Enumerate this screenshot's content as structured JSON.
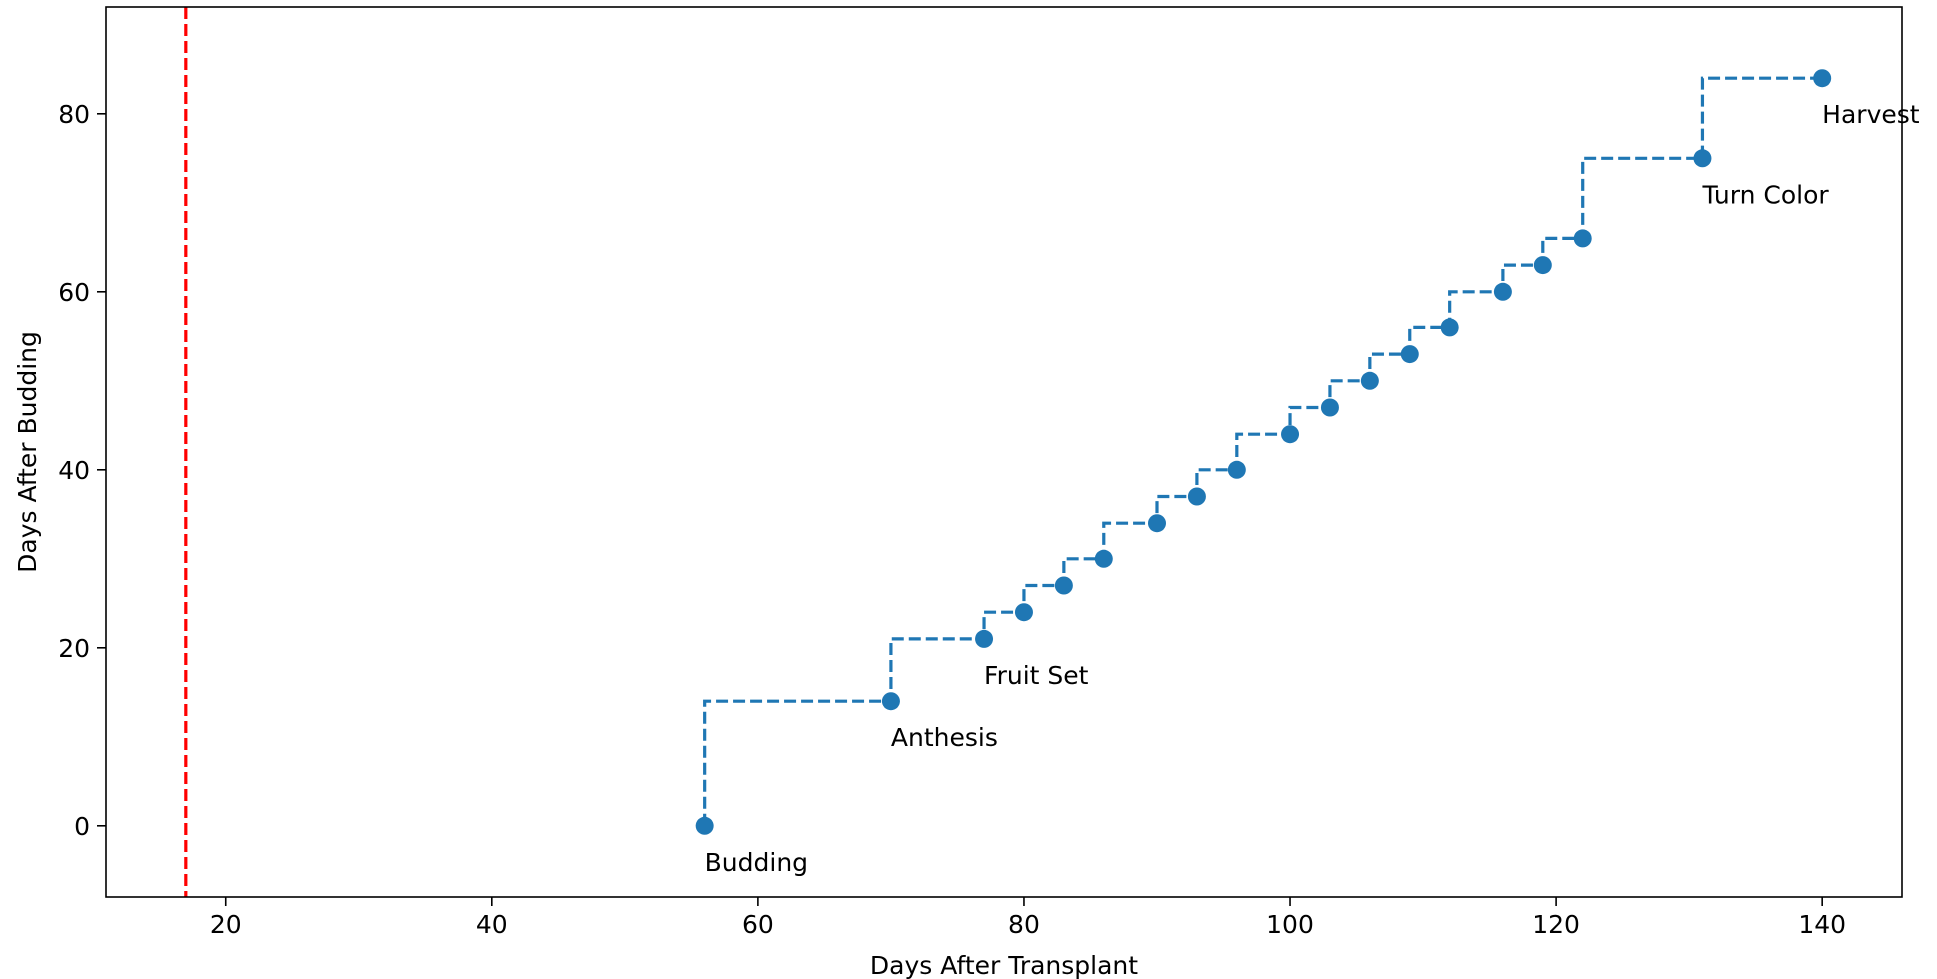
{
  "chart_data": {
    "type": "line",
    "title": "",
    "xlabel": "Days After Transplant",
    "ylabel": "Days After Budding",
    "xlim": [
      11,
      146
    ],
    "ylim": [
      -8,
      92
    ],
    "xticks": [
      20,
      40,
      60,
      80,
      100,
      120,
      140
    ],
    "yticks": [
      0,
      20,
      40,
      60,
      80
    ],
    "grid": false,
    "line_style": "dashed step (post)",
    "series": [
      {
        "color": "#1f77b4",
        "x": [
          56,
          70,
          77,
          80,
          83,
          86,
          90,
          93,
          96,
          100,
          103,
          106,
          109,
          112,
          116,
          119,
          122,
          131,
          140
        ],
        "y": [
          0,
          14,
          21,
          24,
          27,
          30,
          34,
          37,
          40,
          44,
          47,
          50,
          53,
          56,
          60,
          63,
          66,
          75,
          84
        ]
      }
    ],
    "vline": {
      "x": 17,
      "color": "#ff0000",
      "style": "dashed"
    },
    "annotations": [
      {
        "text": "Budding",
        "x": 56,
        "y": 0
      },
      {
        "text": "Anthesis",
        "x": 70,
        "y": 14
      },
      {
        "text": "Fruit Set",
        "x": 77,
        "y": 21
      },
      {
        "text": "Turn Color",
        "x": 131,
        "y": 75
      },
      {
        "text": "Harvest",
        "x": 140,
        "y": 84
      }
    ]
  }
}
